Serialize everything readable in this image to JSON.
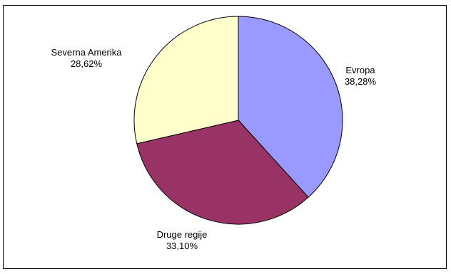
{
  "chart_data": {
    "type": "pie",
    "title": "",
    "slices": [
      {
        "label": "Evropa",
        "value_text": "38,28%",
        "value": 38.28,
        "color": "#9999ff"
      },
      {
        "label": "Druge regije",
        "value_text": "33,10%",
        "value": 33.1,
        "color": "#993366"
      },
      {
        "label": "Severna Amerika",
        "value_text": "28,62%",
        "value": 28.62,
        "color": "#ffffcc"
      }
    ],
    "start_angle_deg": 0,
    "direction": "clockwise",
    "legend": "none",
    "data_labels": "outside"
  }
}
